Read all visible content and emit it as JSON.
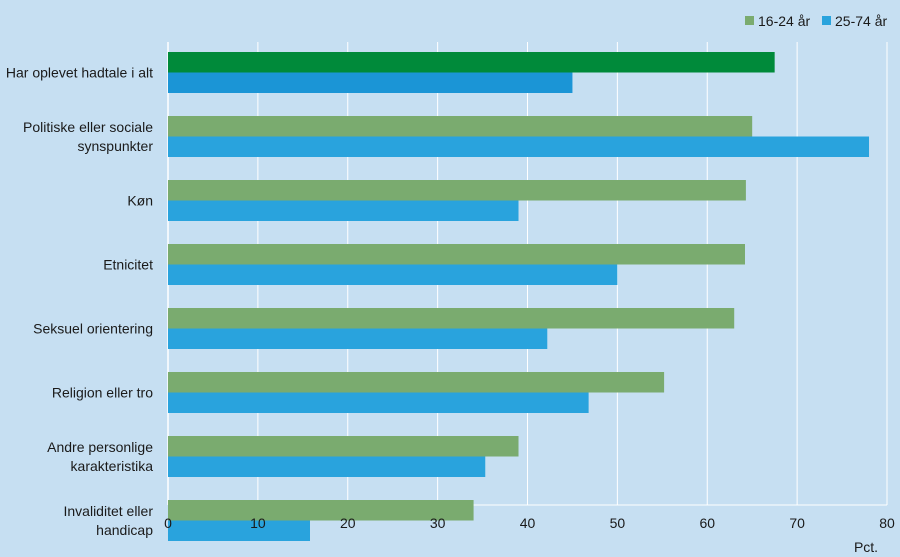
{
  "chart_data": {
    "type": "bar",
    "orientation": "horizontal",
    "categories": [
      [
        "Har oplevet hadtale i alt"
      ],
      [
        "Politiske eller sociale",
        "synspunkter"
      ],
      [
        "Køn"
      ],
      [
        "Etnicitet"
      ],
      [
        "Seksuel orientering"
      ],
      [
        "Religion eller tro"
      ],
      [
        "Andre personlige",
        "karakteristika"
      ],
      [
        "Invaliditet eller",
        "handicap"
      ]
    ],
    "series": [
      {
        "name": "16-24 år",
        "color": "#7aab6f",
        "values": [
          67.5,
          65,
          64.3,
          64.2,
          63,
          55.2,
          39,
          34
        ]
      },
      {
        "name": "25-74 år",
        "color": "#29a3dd",
        "values": [
          45,
          78,
          39,
          50,
          42.2,
          46.8,
          35.3,
          15.8
        ]
      }
    ],
    "highlight": {
      "category_index": 0,
      "colors": [
        "#008a3a",
        "#1b95d6"
      ]
    },
    "xlim": [
      0,
      80
    ],
    "xticks": [
      0,
      10,
      20,
      30,
      40,
      50,
      60,
      70,
      80
    ],
    "xlabel": "Pct.",
    "grid": "vertical",
    "legend": "top-right"
  }
}
